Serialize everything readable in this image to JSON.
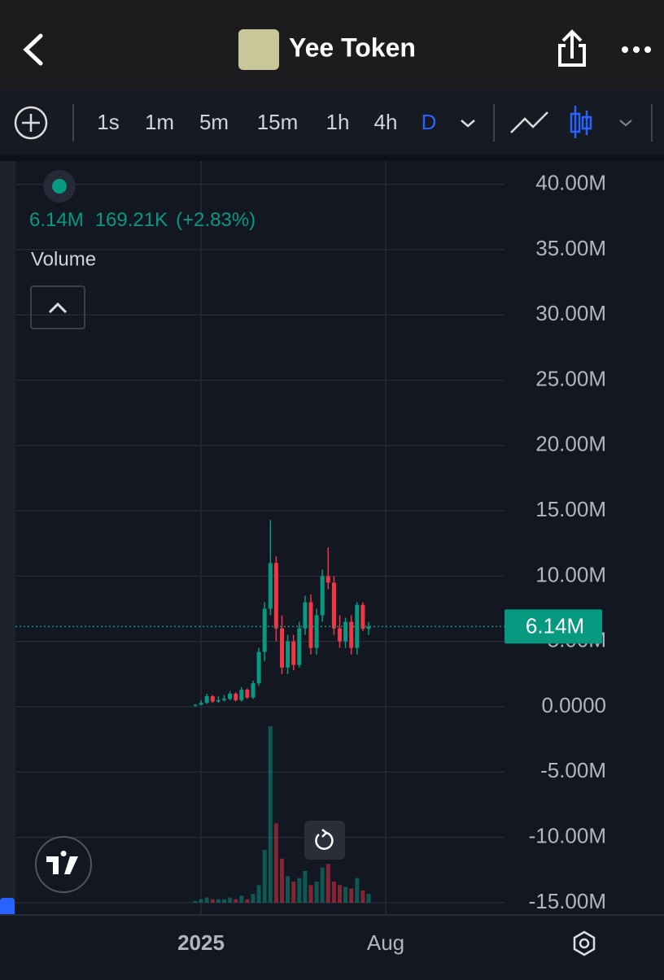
{
  "header": {
    "title": "Yee Token"
  },
  "toolbar": {
    "intervals": [
      "1s",
      "1m",
      "5m",
      "15m",
      "1h",
      "4h",
      "D"
    ],
    "active": 6
  },
  "legend": {
    "change": "169.21K",
    "change_pct": "(+2.83%)",
    "indicator": "Volume"
  },
  "chart_data": {
    "type": "candlestick",
    "up_color": "#089981",
    "down_color": "#f23645",
    "last_price": 6140000,
    "last_price_label": "6.14M",
    "ylim": [
      -15940000,
      41780000
    ],
    "yticks": [
      {
        "value": 40000000,
        "label": "40.00M"
      },
      {
        "value": 35000000,
        "label": "35.00M"
      },
      {
        "value": 30000000,
        "label": "30.00M"
      },
      {
        "value": 25000000,
        "label": "25.00M"
      },
      {
        "value": 20000000,
        "label": "20.00M"
      },
      {
        "value": 15000000,
        "label": "15.00M"
      },
      {
        "value": 10000000,
        "label": "10.00M"
      },
      {
        "value": 5000000,
        "label": "5.00M"
      },
      {
        "value": 0,
        "label": "0.0000"
      },
      {
        "value": -5000000,
        "label": "-5.00M"
      },
      {
        "value": -10000000,
        "label": "-10.00M"
      },
      {
        "value": -15000000,
        "label": "-15.00M"
      }
    ],
    "xtick_labels": [
      "2025",
      "Aug"
    ],
    "open": [
      100000,
      150000,
      300000,
      800000,
      400000,
      500000,
      600000,
      1000000,
      500000,
      1300000,
      700000,
      1800000,
      4200000,
      7500000,
      11000000,
      6000000,
      3000000,
      5000000,
      3200000,
      6000000,
      8000000,
      4500000,
      7000000,
      10000000,
      9500000,
      6000000,
      5000000,
      6500000,
      4500000,
      7800000,
      5970000
    ],
    "high": [
      200000,
      500000,
      1000000,
      900000,
      800000,
      900000,
      1200000,
      1100000,
      1500000,
      1400000,
      2000000,
      4500000,
      8000000,
      14300000,
      11500000,
      7000000,
      5500000,
      5500000,
      6500000,
      8500000,
      8600000,
      7500000,
      10500000,
      12200000,
      10000000,
      7000000,
      6800000,
      7000000,
      8000000,
      8000000,
      6500000
    ],
    "low": [
      0,
      100000,
      200000,
      300000,
      300000,
      400000,
      500000,
      400000,
      400000,
      600000,
      600000,
      1600000,
      3500000,
      7000000,
      5000000,
      2500000,
      2500000,
      2800000,
      3000000,
      5500000,
      4000000,
      4000000,
      6500000,
      9000000,
      5500000,
      4500000,
      4500000,
      4000000,
      4000000,
      5800000,
      5500000
    ],
    "close": [
      150000,
      300000,
      800000,
      400000,
      500000,
      600000,
      1000000,
      500000,
      1300000,
      700000,
      1800000,
      4200000,
      7500000,
      11000000,
      6000000,
      3000000,
      5000000,
      3200000,
      6000000,
      8000000,
      4500000,
      7000000,
      10000000,
      9500000,
      6000000,
      5000000,
      6500000,
      4500000,
      7800000,
      5970000,
      6140000
    ],
    "volume": [
      1,
      2,
      3,
      2,
      2,
      2,
      3,
      2,
      4,
      2,
      5,
      10,
      30,
      100,
      45,
      25,
      15,
      12,
      14,
      18,
      10,
      12,
      20,
      22,
      12,
      10,
      9,
      8,
      14,
      7,
      5
    ]
  }
}
